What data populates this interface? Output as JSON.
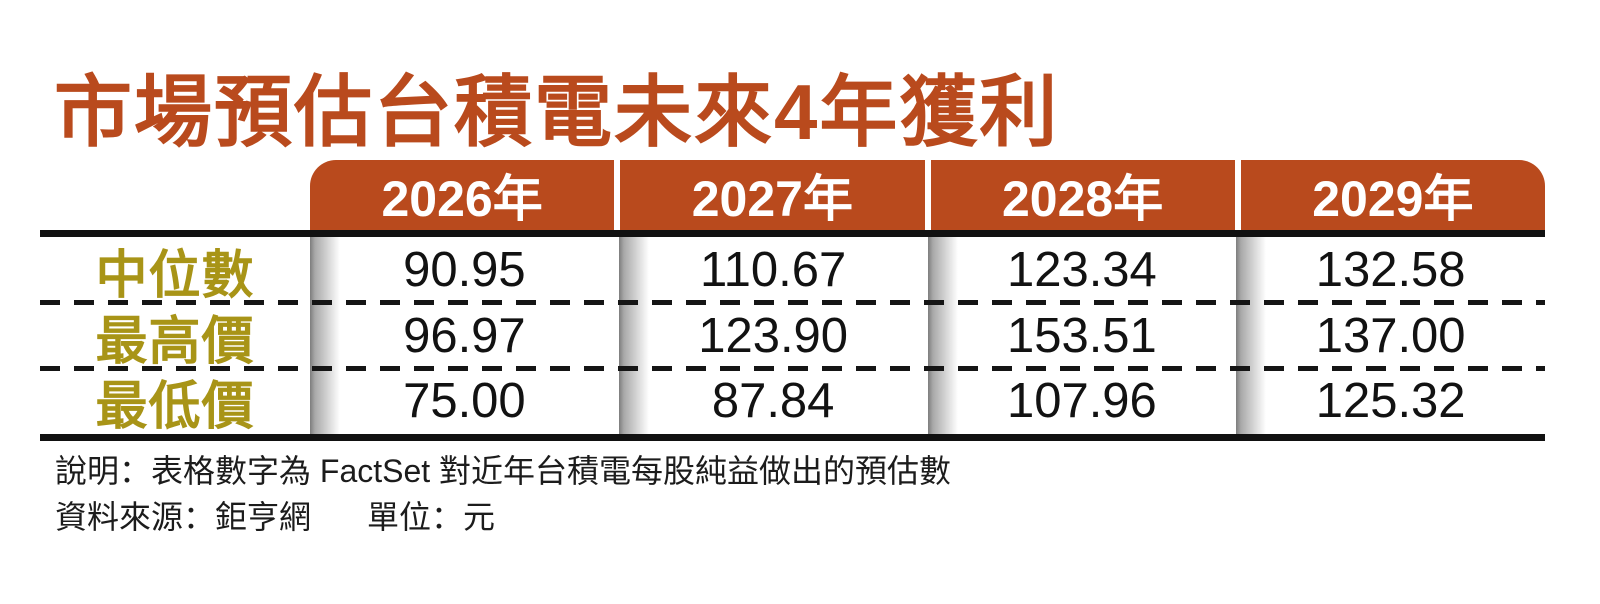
{
  "title": "市場預估台積電未來4年獲利",
  "table": {
    "column_headers": [
      "2026年",
      "2027年",
      "2028年",
      "2029年"
    ],
    "rows": [
      {
        "label": "中位數",
        "values": [
          "90.95",
          "110.67",
          "123.34",
          "132.58"
        ]
      },
      {
        "label": "最高價",
        "values": [
          "96.97",
          "123.90",
          "153.51",
          "137.00"
        ]
      },
      {
        "label": "最低價",
        "values": [
          "75.00",
          "87.84",
          "107.96",
          "125.32"
        ]
      }
    ]
  },
  "notes": {
    "description": "說明：表格數字為 FactSet 對近年台積電每股純益做出的預估數",
    "source": "資料來源：鉅亨網",
    "unit": "單位：元"
  },
  "colors": {
    "accent": "#b94a1d",
    "row_label": "#a89417",
    "rule": "#111111"
  },
  "chart_data": {
    "type": "table",
    "title": "市場預估台積電未來4年獲利",
    "categories": [
      "2026年",
      "2027年",
      "2028年",
      "2029年"
    ],
    "series": [
      {
        "name": "中位數",
        "values": [
          90.95,
          110.67,
          123.34,
          132.58
        ]
      },
      {
        "name": "最高價",
        "values": [
          96.97,
          123.9,
          153.51,
          137.0
        ]
      },
      {
        "name": "最低價",
        "values": [
          75.0,
          87.84,
          107.96,
          125.32
        ]
      }
    ],
    "unit": "元",
    "source": "鉅亨網",
    "note": "表格數字為 FactSet 對近年台積電每股純益做出的預估數"
  }
}
